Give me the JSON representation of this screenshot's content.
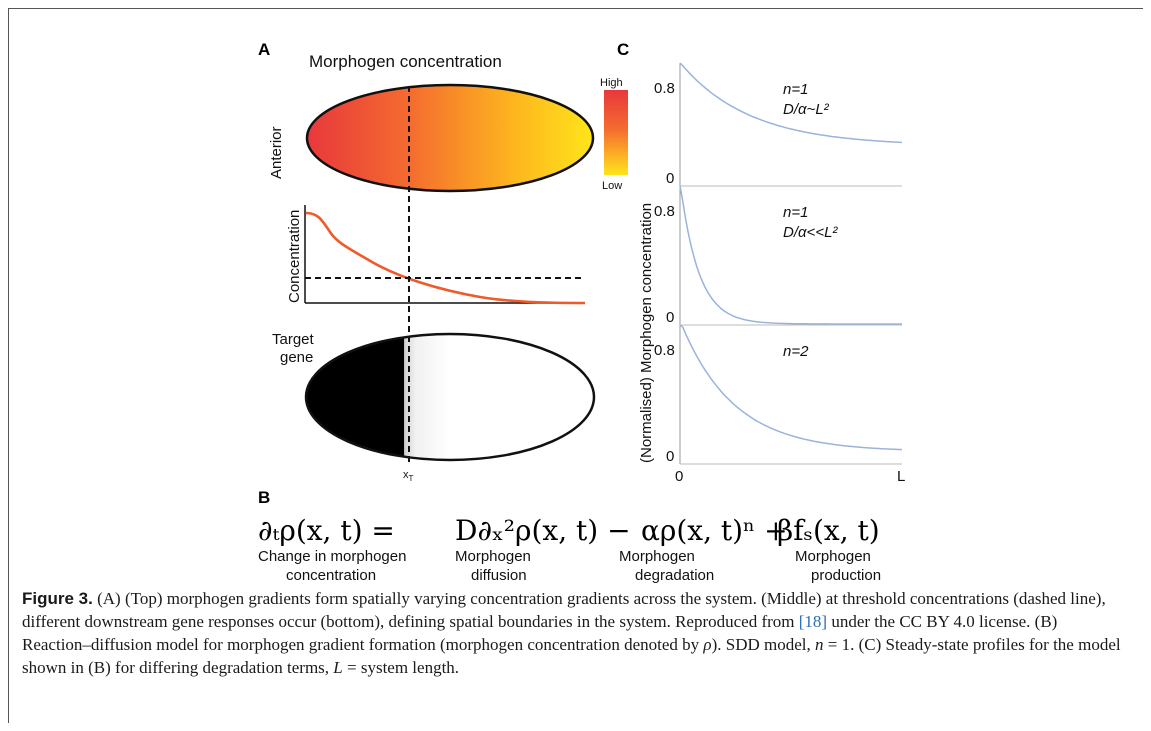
{
  "panel_a": {
    "label": "A",
    "title": "Morphogen concentration",
    "anterior_label": "Anterior",
    "colorbar_high": "High",
    "colorbar_low": "Low",
    "concentration_axis_label": "Concentration",
    "target_gene_line1": "Target",
    "target_gene_line2": "gene",
    "threshold_position_label": "x",
    "threshold_position_sub": "T",
    "gradient_colors": [
      "#e8383c",
      "#f46a30",
      "#fdb51e",
      "#ffe51a"
    ]
  },
  "panel_b": {
    "label": "B",
    "equation_terms": [
      {
        "symbol": "∂ₜρ(x, t) =",
        "line1": "Change in morphogen",
        "line2": "concentration"
      },
      {
        "symbol": "D∂ₓ²ρ(x, t) −",
        "line1": "Morphogen",
        "line2": "diffusion"
      },
      {
        "symbol": "αρ(x, t)ⁿ +",
        "line1": "Morphogen",
        "line2": "degradation"
      },
      {
        "symbol": "βfₛ(x, t)",
        "line1": "Morphogen",
        "line2": "production"
      }
    ]
  },
  "panel_c": {
    "label": "C",
    "y_axis_label": "(Normalised) Morphogen concentration",
    "x_tick_start": "0",
    "x_tick_end": "L",
    "line_color": "#9ab3dc",
    "subplots": [
      {
        "annotation_line1": "n=1",
        "annotation_line2": "D/α~L²",
        "y_tick_top": "0.8",
        "y_tick_bottom": "0",
        "curve_floor": 0.32,
        "decay_rate": 3.2
      },
      {
        "annotation_line1": "n=1",
        "annotation_line2": "D/α<<L²",
        "y_tick_top": "0.8",
        "y_tick_bottom": "0",
        "curve_floor": 0.0,
        "decay_rate": 12.0
      },
      {
        "annotation_line1": "n=2",
        "annotation_line2": "",
        "y_tick_top": "0.8",
        "y_tick_bottom": "0",
        "curve_floor": 0.08,
        "decay_rate": 4.2
      }
    ]
  },
  "caption": {
    "label": "Figure 3.",
    "part1": "  (A) (Top) morphogen gradients form spatially varying concentration gradients across the system. (Middle) at threshold concentrations (dashed line), different downstream gene responses occur (bottom), defining spatial boundaries in the system. Reproduced from ",
    "ref": "[18]",
    "part2": " under the CC BY 4.0 license. (B) Reaction–diffusion model for morphogen gradient formation (morphogen concentration denoted by ",
    "rho": "ρ",
    "part3": "). SDD model, ",
    "n_sym": "n",
    "part4": " = 1. (C) Steady-state profiles for the model shown in (B) for differing degradation terms, ",
    "L_sym": "L",
    "part5": " = system length."
  }
}
